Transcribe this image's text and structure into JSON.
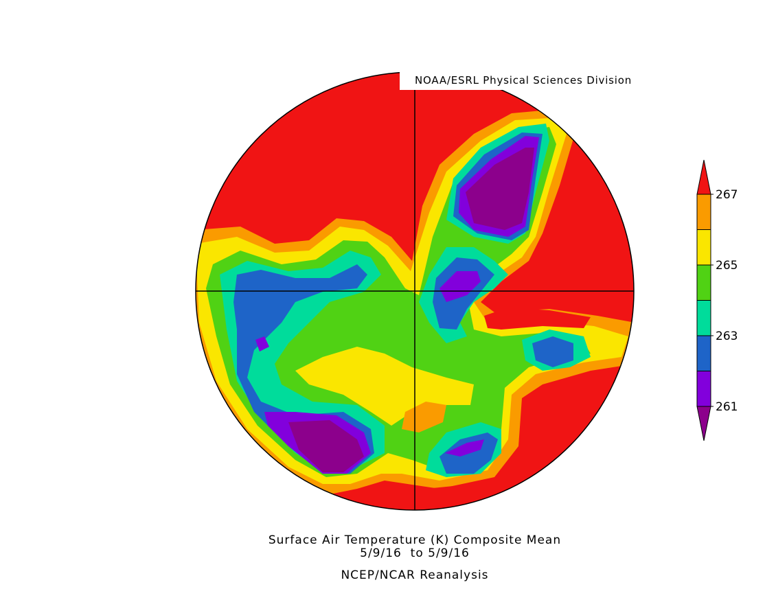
{
  "header": {
    "source": "NOAA/ESRL Physical Sciences Division"
  },
  "footer": {
    "title": "Surface Air Temperature (K) Composite Mean",
    "dates": "5/9/16  to 5/9/16",
    "dataset": "NCEP/NCAR Reanalysis"
  },
  "colorbar": {
    "lim": [
      261,
      267
    ],
    "ticks": [
      261,
      263,
      265,
      267
    ],
    "colors": [
      "#8c008c",
      "#8200dc",
      "#1e64c8",
      "#00dc9b",
      "#50d214",
      "#fae600",
      "#fa9b00",
      "#f01414"
    ]
  }
}
